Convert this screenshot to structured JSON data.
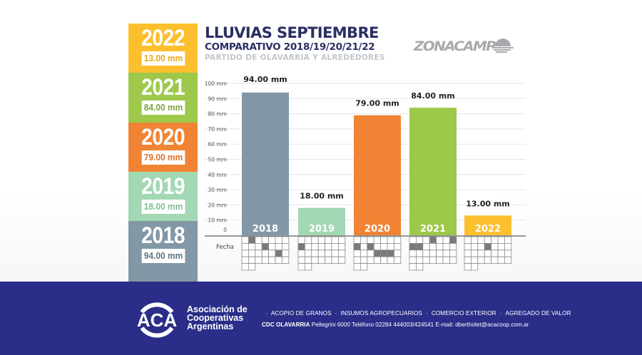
{
  "header": {
    "title": "LLUVIAS SEPTIEMBRE",
    "subtitle": "COMPARATIVO 2018/19/20/21/22",
    "region": "PARTIDO DE OLAVARRIA Y ALREDEDORES",
    "brand": "ZONACAMP"
  },
  "year_panel": [
    {
      "year": "2022",
      "value": "13.00 mm",
      "color": "#fcc02f",
      "text_color": "#e9a71e"
    },
    {
      "year": "2021",
      "value": "84.00 mm",
      "color": "#9dc84a",
      "text_color": "#7ea43a"
    },
    {
      "year": "2020",
      "value": "79.00 mm",
      "color": "#f08434",
      "text_color": "#e0702a"
    },
    {
      "year": "2019",
      "value": "18.00 mm",
      "color": "#a2d8b3",
      "text_color": "#7fbf96"
    },
    {
      "year": "2018",
      "value": "94.00 mm",
      "color": "#8298a6",
      "text_color": "#5f7585"
    }
  ],
  "chart_data": {
    "type": "bar",
    "title": "LLUVIAS SEPTIEMBRE",
    "subtitle": "COMPARATIVO 2018/19/20/21/22",
    "xlabel": "Fecha",
    "ylabel": "",
    "ylim": [
      0,
      100
    ],
    "grid": true,
    "yticks": [
      0,
      10,
      20,
      30,
      40,
      50,
      60,
      70,
      80,
      90,
      100
    ],
    "ytick_labels": [
      "0",
      "10 mm",
      "20 mm",
      "30 mm",
      "40 mm",
      "50 mm",
      "60 mm",
      "70 mm",
      "80 mm",
      "90 mm",
      "100 mm"
    ],
    "categories": [
      "2018",
      "2019",
      "2020",
      "2021",
      "2022"
    ],
    "values": [
      94,
      18,
      79,
      84,
      13
    ],
    "data_labels": [
      "94.00 mm",
      "18.00 mm",
      "79.00 mm",
      "84.00 mm",
      "13.00 mm"
    ],
    "colors": [
      "#8298a6",
      "#a2d8b3",
      "#f08434",
      "#9dc84a",
      "#fcc02f"
    ],
    "rain_days": [
      {
        "year": "2018",
        "days": [
          2,
          11,
          20
        ]
      },
      {
        "year": "2019",
        "days": [
          8
        ]
      },
      {
        "year": "2020",
        "days": [
          8,
          10,
          18,
          19,
          20
        ]
      },
      {
        "year": "2021",
        "days": [
          4,
          7,
          8,
          9
        ]
      },
      {
        "year": "2022",
        "days": [
          11
        ]
      }
    ]
  },
  "footer": {
    "logo_text": "ACA",
    "org_name": [
      "Asociación de",
      "Cooperativas",
      "Argentinas"
    ],
    "services": [
      "ACOPIO DE GRANOS",
      "INSUMOS AGROPECUARIOS",
      "COMERCIO EXTERIOR",
      "AGREGADO DE VALOR"
    ],
    "contact_label": "CDC OLAVARRIA",
    "contact_details": "Pellegrini 6000 Teléfono 02284 444003/424541 E-mail: dbertholet@acacoop.com.ar"
  }
}
